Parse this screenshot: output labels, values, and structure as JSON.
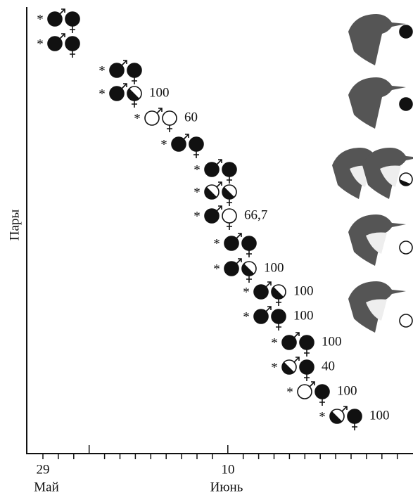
{
  "y_axis_label": "Пары",
  "marker": "*",
  "pair_values": [
    null,
    null,
    null,
    "100",
    "60",
    null,
    null,
    null,
    "66,7",
    null,
    "100",
    "100",
    "100",
    "100",
    "40",
    "100",
    "100"
  ],
  "x_axis": {
    "tick_labels": [
      "29",
      "10"
    ],
    "months": [
      "Май",
      "Июнь"
    ]
  }
}
